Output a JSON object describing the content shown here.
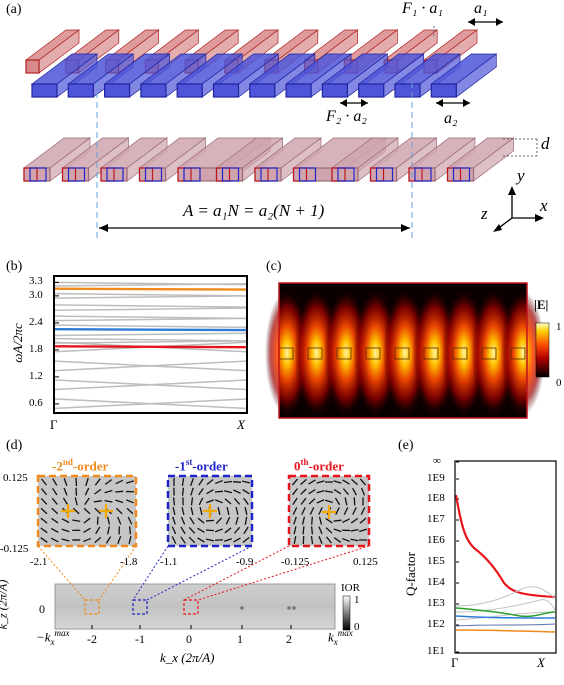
{
  "panels": {
    "a": "(a)",
    "b": "(b)",
    "c": "(c)",
    "d": "(d)",
    "e": "(e)"
  },
  "panel_a": {
    "F1a1": "F₁ · a₁",
    "a1": "a₁",
    "F2a2": "F₂ · a₂",
    "a2": "a₂",
    "d": "d",
    "A_eq": "A = a₁N = a₂(N + 1)",
    "axes": {
      "y": "y",
      "z": "z",
      "x": "x"
    },
    "colors": {
      "red": "#d98a8a",
      "blue": "#4f55d8",
      "pink": "#cfa4ae"
    }
  },
  "panel_b": {
    "ylabel": "ωA/2πc",
    "xticks": [
      "Γ",
      "X"
    ],
    "yticks": [
      "0.6",
      "1.2",
      "1.8",
      "2.4",
      "3.0",
      "3.3"
    ],
    "highlight": [
      {
        "y": 1.88,
        "color": "#e8141c"
      },
      {
        "y": 2.26,
        "color": "#2e7bd8"
      },
      {
        "y": 3.16,
        "color": "#f18a1c"
      }
    ]
  },
  "panel_c": {
    "colorbar_title": "|E|",
    "colorbar_max": "1",
    "colorbar_min": "0",
    "n_lobes": 9
  },
  "panel_d": {
    "insets": [
      {
        "title_num": "-2",
        "title_sup": "nd",
        "title_rest": "-order",
        "color": "#f18a1c",
        "x_left": "-2.1",
        "x_right": "-1.8"
      },
      {
        "title_num": "-1",
        "title_sup": "st",
        "title_rest": "-order",
        "color": "#1f24c8",
        "x_left": "-1.1",
        "x_right": "-0.9"
      },
      {
        "title_num": "0",
        "title_sup": "th",
        "title_rest": "-order",
        "color": "#e8141c",
        "x_left": "-0.125",
        "x_right": "0.125"
      }
    ],
    "y_top": "0.125",
    "y_bottom": "-0.125",
    "ylabel": "k_z (2π/A)",
    "xlabel": "k_x (2π/A)",
    "xticks": [
      "-2",
      "-1",
      "0",
      "1",
      "2"
    ],
    "kx_min": "−k",
    "kx_max": "k",
    "max_sup": "max",
    "x_sub": "x",
    "yzero": "0",
    "colorbar_title": "IOR",
    "colorbar_max": "1",
    "colorbar_min": "0"
  },
  "panel_e": {
    "ylabel": "Q-factor",
    "yticks": [
      "∞",
      "1E9",
      "1E8",
      "1E7",
      "1E6",
      "1E5",
      "1E4",
      "1E3",
      "1E2",
      "1E1"
    ],
    "xticks": [
      "Γ",
      "X"
    ]
  }
}
